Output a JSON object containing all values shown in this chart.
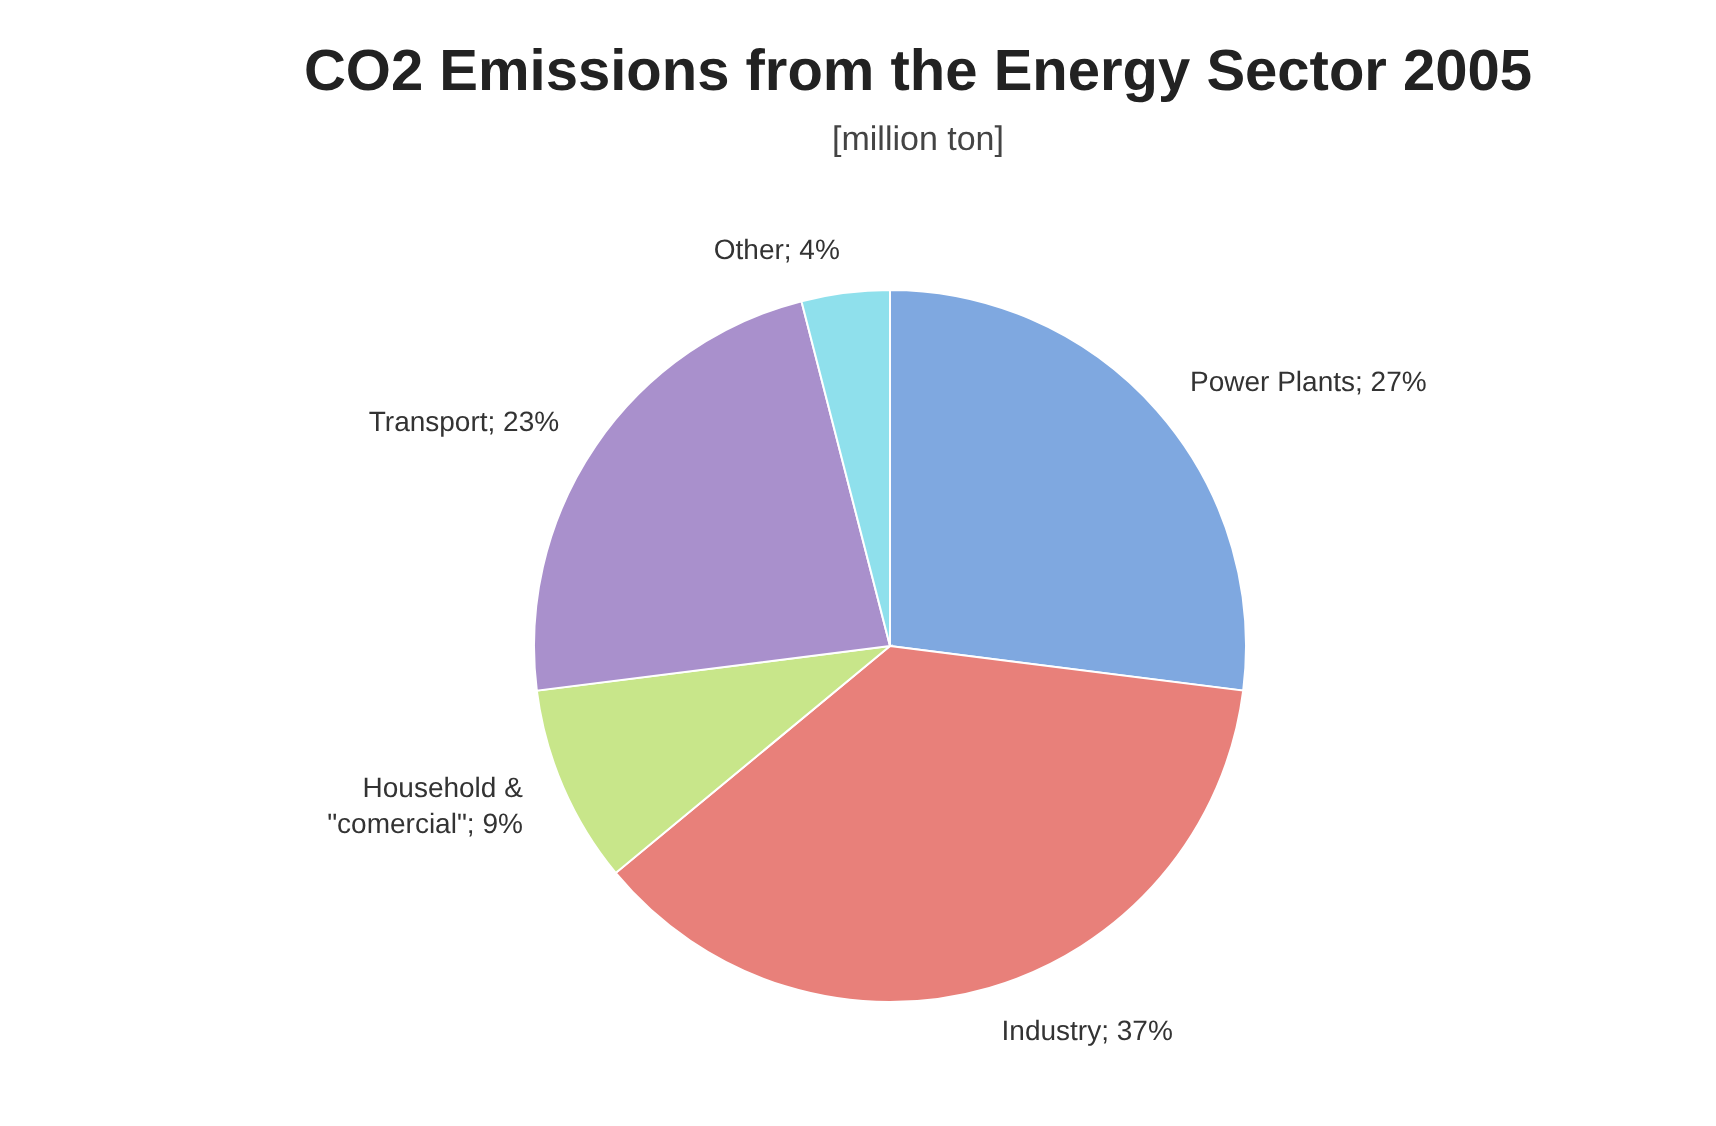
{
  "chart_data": {
    "type": "pie",
    "title": "CO2 Emissions from the Energy Sector 2005",
    "subtitle": "[million ton]",
    "categories": [
      "Power Plants",
      "Industry",
      "Household & \"comercial\"",
      "Transport",
      "Other"
    ],
    "values": [
      27,
      37,
      9,
      23,
      4
    ],
    "colors": [
      "#7fa8e0",
      "#e8807a",
      "#c8e68a",
      "#a990cc",
      "#8fe0ec"
    ],
    "value_labels": [
      "27%",
      "37%",
      "9%",
      "23%",
      "4%"
    ],
    "legend": false
  }
}
